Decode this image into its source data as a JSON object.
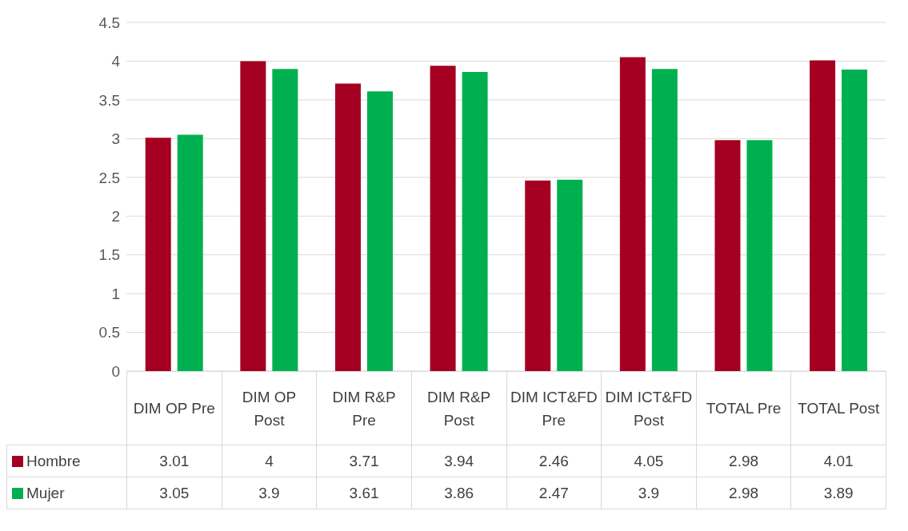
{
  "chart_data": {
    "type": "bar",
    "categories": [
      "DIM OP Pre",
      "DIM OP Post",
      "DIM R&P Pre",
      "DIM R&P Post",
      "DIM ICT&FD Pre",
      "DIM ICT&FD Post",
      "TOTAL Pre",
      "TOTAL Post"
    ],
    "series": [
      {
        "name": "Hombre",
        "color": "#a50021",
        "values": [
          3.01,
          4,
          3.71,
          3.94,
          2.46,
          4.05,
          2.98,
          4.01
        ]
      },
      {
        "name": "Mujer",
        "color": "#00b050",
        "values": [
          3.05,
          3.9,
          3.61,
          3.86,
          2.47,
          3.9,
          2.98,
          3.89
        ]
      }
    ],
    "ylim": [
      0,
      4.5
    ],
    "yticks": [
      0,
      0.5,
      1,
      1.5,
      2,
      2.5,
      3,
      3.5,
      4,
      4.5
    ],
    "grid": "y",
    "legend": "bottom",
    "data_labels": true
  }
}
